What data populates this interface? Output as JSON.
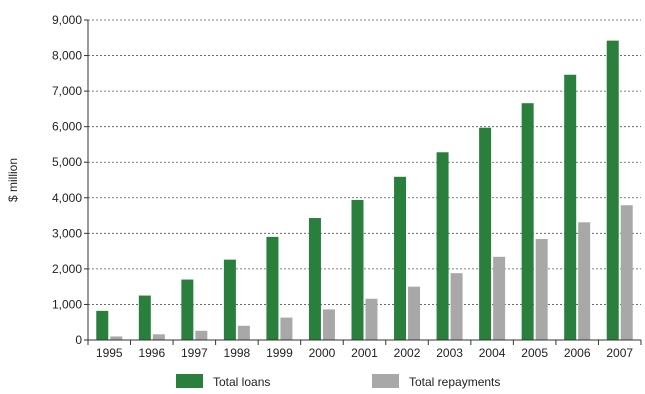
{
  "chart_data": {
    "type": "bar",
    "title": "",
    "xlabel": "",
    "ylabel": "$ million",
    "categories": [
      "1995",
      "1996",
      "1997",
      "1998",
      "1999",
      "2000",
      "2001",
      "2002",
      "2003",
      "2004",
      "2005",
      "2006",
      "2007"
    ],
    "series": [
      {
        "name": "Total loans",
        "color": "#2a7f3c",
        "values": [
          820,
          1250,
          1700,
          2260,
          2900,
          3430,
          3940,
          4590,
          5280,
          5970,
          6660,
          7460,
          8420
        ]
      },
      {
        "name": "Total repayments",
        "color": "#a8a8a8",
        "values": [
          100,
          160,
          260,
          400,
          630,
          860,
          1160,
          1500,
          1880,
          2340,
          2840,
          3310,
          3790
        ]
      }
    ],
    "ylim": [
      0,
      9000
    ],
    "yticks": [
      0,
      1000,
      2000,
      3000,
      4000,
      5000,
      6000,
      7000,
      8000,
      9000
    ],
    "ytick_labels": [
      "0",
      "1,000",
      "2,000",
      "3,000",
      "4,000",
      "5,000",
      "6,000",
      "7,000",
      "8,000",
      "9,000"
    ],
    "grid": true,
    "legend_position": "bottom"
  }
}
